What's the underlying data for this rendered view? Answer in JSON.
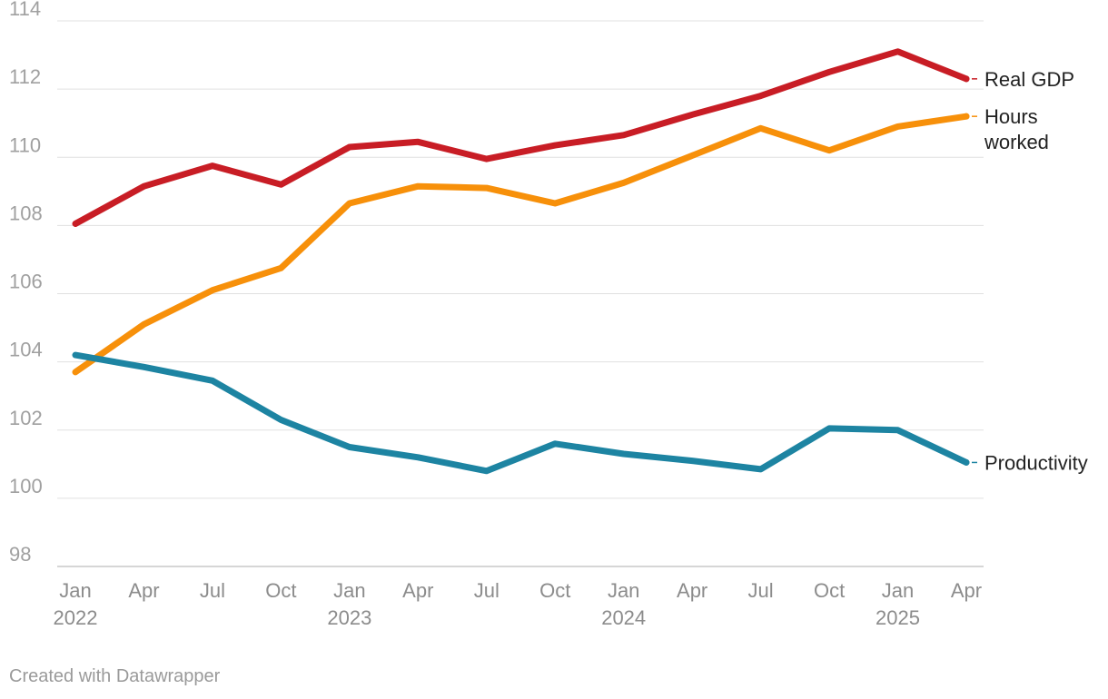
{
  "chart_data": {
    "type": "line",
    "title": "",
    "xlabel": "",
    "ylabel": "",
    "ylim": [
      98,
      114
    ],
    "y_ticks": [
      98,
      100,
      102,
      104,
      106,
      108,
      110,
      112,
      114
    ],
    "grid": true,
    "x": [
      "Jan 2022",
      "Apr 2022",
      "Jul 2022",
      "Oct 2022",
      "Jan 2023",
      "Apr 2023",
      "Jul 2023",
      "Oct 2023",
      "Jan 2024",
      "Apr 2024",
      "Jul 2024",
      "Oct 2024",
      "Jan 2025",
      "Apr 2025"
    ],
    "x_tick_labels": [
      {
        "month": "Jan",
        "year": "2022"
      },
      {
        "month": "Apr",
        "year": ""
      },
      {
        "month": "Jul",
        "year": ""
      },
      {
        "month": "Oct",
        "year": ""
      },
      {
        "month": "Jan",
        "year": "2023"
      },
      {
        "month": "Apr",
        "year": ""
      },
      {
        "month": "Jul",
        "year": ""
      },
      {
        "month": "Oct",
        "year": ""
      },
      {
        "month": "Jan",
        "year": "2024"
      },
      {
        "month": "Apr",
        "year": ""
      },
      {
        "month": "Jul",
        "year": ""
      },
      {
        "month": "Oct",
        "year": ""
      },
      {
        "month": "Jan",
        "year": "2025"
      },
      {
        "month": "Apr",
        "year": ""
      }
    ],
    "series": [
      {
        "name": "Real GDP",
        "label_lines": [
          "Real GDP"
        ],
        "color": "#c81d25",
        "values": [
          108.05,
          109.15,
          109.75,
          109.2,
          110.3,
          110.45,
          109.95,
          110.35,
          110.65,
          111.25,
          111.8,
          112.5,
          113.1,
          112.3
        ]
      },
      {
        "name": "Hours worked",
        "label_lines": [
          "Hours",
          "worked"
        ],
        "color": "#f7900a",
        "values": [
          103.7,
          105.1,
          106.1,
          106.75,
          108.65,
          109.15,
          109.1,
          108.65,
          109.25,
          110.05,
          110.85,
          110.2,
          110.9,
          111.2
        ]
      },
      {
        "name": "Productivity",
        "label_lines": [
          "Productivity"
        ],
        "color": "#1d84a2",
        "values": [
          104.2,
          103.85,
          103.45,
          102.3,
          101.5,
          101.2,
          100.8,
          101.6,
          101.3,
          101.1,
          100.85,
          102.05,
          102.0,
          101.05
        ]
      }
    ]
  },
  "footer": {
    "credit": "Created with Datawrapper"
  }
}
